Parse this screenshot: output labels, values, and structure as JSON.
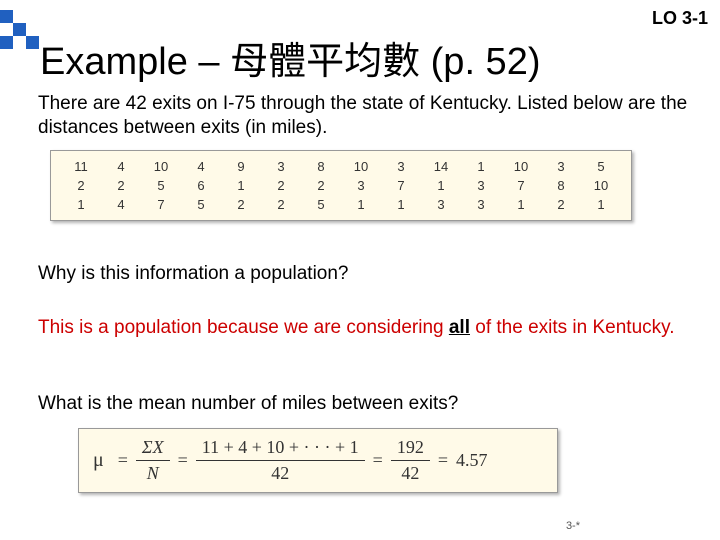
{
  "header": {
    "lo_tag": "LO 3-1",
    "title": "Example – 母體平均數 (p. 52)"
  },
  "intro": "There are 42 exits on I-75 through the state of Kentucky. Listed below are the distances between exits (in miles).",
  "data": {
    "rows": [
      [
        "11",
        "4",
        "10",
        "4",
        "9",
        "3",
        "8",
        "10",
        "3",
        "14",
        "1",
        "10",
        "3",
        "5"
      ],
      [
        "2",
        "2",
        "5",
        "6",
        "1",
        "2",
        "2",
        "3",
        "7",
        "1",
        "3",
        "7",
        "8",
        "10"
      ],
      [
        "1",
        "4",
        "7",
        "5",
        "2",
        "2",
        "5",
        "1",
        "1",
        "3",
        "3",
        "1",
        "2",
        "1"
      ]
    ],
    "box_bg": "#fffae8",
    "border": "#999999"
  },
  "q1": "Why is this information a population?",
  "answer_pre": "This is a population because we are considering ",
  "answer_all": "all",
  "answer_post": " of the exits in Kentucky.",
  "q2": "What is the mean number of miles between exits?",
  "formula": {
    "mu": "μ",
    "sumX": "ΣX",
    "N": "N",
    "expansion_num": "11 + 4 + 10 + · · · + 1",
    "expansion_den": "42",
    "sum_num": "192",
    "sum_den": "42",
    "result": "4.57"
  },
  "pagenum": "3-*"
}
